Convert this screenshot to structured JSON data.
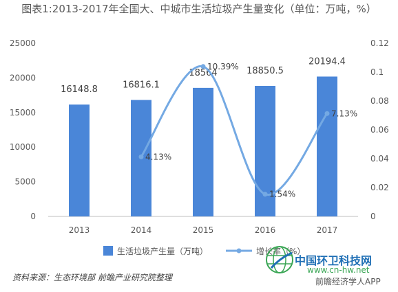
{
  "title": "图表1:2013-2017年全国大、中城市生活垃圾产生量变化（单位：万吨，%）",
  "source_note": "资料来源：生态环境部 前瞻产业研究院整理",
  "watermarks": {
    "site_name": "中国环卫科技网",
    "site_url": "www.cn-hw.net",
    "app_name": "前瞻经济学人APP"
  },
  "colors": {
    "bar": "#4a86d8",
    "line": "#74a9e3",
    "axis_text": "#595959"
  },
  "chart_data": {
    "type": "bar",
    "categories": [
      "2013",
      "2014",
      "2015",
      "2016",
      "2017"
    ],
    "series": [
      {
        "name": "生活垃圾产生量（万吨）",
        "type": "bar",
        "axis": "left",
        "values": [
          16148.8,
          16816.1,
          18564,
          18850.5,
          20194.4
        ],
        "labels": [
          "16148.8",
          "16816.1",
          "18564",
          "18850.5",
          "20194.4"
        ]
      },
      {
        "name": "增长率（%）",
        "type": "line",
        "axis": "right",
        "smooth": true,
        "values": [
          null,
          0.0413,
          0.1039,
          0.0154,
          0.0713
        ],
        "labels": [
          "",
          "4.13%",
          "10.39%",
          "1.54%",
          "7.13%"
        ]
      }
    ],
    "y_left": {
      "min": 0,
      "max": 25000,
      "ticks": [
        "0",
        "5000",
        "10000",
        "15000",
        "20000",
        "25000"
      ]
    },
    "y_right": {
      "min": 0,
      "max": 0.12,
      "ticks": [
        "0",
        "0.02",
        "0.04",
        "0.06",
        "0.08",
        "0.1",
        "0.12"
      ]
    },
    "legend_position": "bottom",
    "grid": false
  }
}
